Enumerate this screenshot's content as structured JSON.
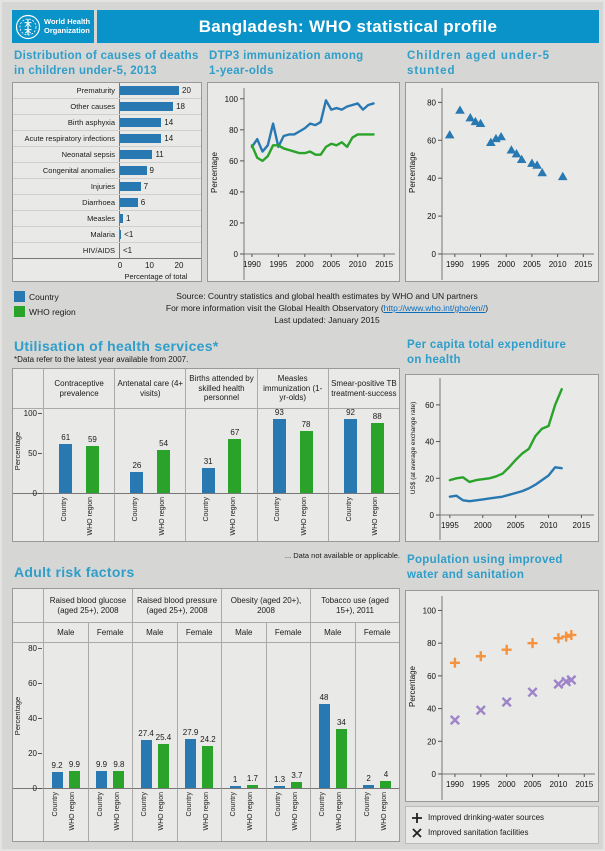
{
  "header": {
    "logo_line1": "World Health",
    "logo_line2": "Organization",
    "title": "Bangladesh: WHO statistical profile"
  },
  "legend": {
    "country": "Country",
    "who_region": "WHO region"
  },
  "source": {
    "line1": "Source:   Country statistics and global health estimates  by WHO and UN partners",
    "line2_prefix": "For more information visit the Global Health Observatory (",
    "link_text": "http://www.who.int/gho/en//",
    "line2_suffix": ")",
    "line3": "Last updated: January 2015"
  },
  "sections": {
    "causes": {
      "t1": "Distribution of causes of deaths",
      "t2": "in children under-5, 2013"
    },
    "dtp3": {
      "t1": "DTP3 immunization among",
      "t2": "1-year-olds"
    },
    "stunted": {
      "t1": "Children aged under-5",
      "t2": "stunted"
    },
    "utilisation": {
      "title": "Utilisation of health services*",
      "subtitle": "*Data refer to the latest year available from 2007.",
      "note": "... Data not available or applicable."
    },
    "expenditure": {
      "t1": "Per capita total expenditure",
      "t2": "on health"
    },
    "risk": {
      "title": "Adult risk factors"
    },
    "water": {
      "t1": "Population using improved",
      "t2": "water and sanitation",
      "legend": [
        {
          "symbol": "plus-icon",
          "label": "Improved drinking-water sources"
        },
        {
          "symbol": "cross-icon",
          "label": "Improved sanitation facilities"
        }
      ]
    }
  },
  "colors": {
    "header_blue": "#0a93c8",
    "title_cyan": "#2f9ec9",
    "country_blue": "#2878b2",
    "region_green": "#2aa32a",
    "water_orange": "#f5923e",
    "sanitation_purple": "#9d84c8",
    "link_blue": "#0a6ebd"
  },
  "chart_data": [
    {
      "id": "causes",
      "type": "bar",
      "orientation": "horizontal",
      "title": "Distribution of causes of deaths in children under-5, 2013",
      "categories": [
        "Prematurity",
        "Other causes",
        "Birth asphyxia",
        "Acute respiratory infections",
        "Neonatal sepsis",
        "Congenital anomalies",
        "Injuries",
        "Diarrhoea",
        "Measles",
        "Malaria",
        "HIV/AIDS"
      ],
      "values": [
        20,
        18,
        14,
        14,
        11,
        9,
        7,
        6,
        1,
        0.4,
        0
      ],
      "value_labels": [
        "20",
        "18",
        "14",
        "14",
        "11",
        "9",
        "7",
        "6",
        "1",
        "<1",
        "<1"
      ],
      "xlabel": "Percentage of total",
      "xticks": [
        0,
        10,
        20
      ],
      "xlim": [
        0,
        27.5
      ]
    },
    {
      "id": "dtp3",
      "type": "line",
      "title": "DTP3 immunization among 1-year-olds",
      "ylabel": "Percentage",
      "ylim": [
        0,
        105
      ],
      "yticks": [
        0,
        20,
        40,
        60,
        80,
        100
      ],
      "xlim": [
        1988.5,
        2016.3
      ],
      "xticks": [
        1990,
        1995,
        2000,
        2005,
        2010,
        2015
      ],
      "x": [
        1990,
        1991,
        1992,
        1993,
        1994,
        1995,
        1996,
        1997,
        1998,
        1999,
        2000,
        2001,
        2002,
        2003,
        2004,
        2005,
        2006,
        2007,
        2008,
        2009,
        2010,
        2011,
        2012,
        2013
      ],
      "series": [
        {
          "name": "Country",
          "color": "country_blue",
          "values": [
            69,
            74,
            66,
            70,
            84,
            69,
            76,
            77,
            77,
            79,
            81,
            84,
            83,
            85,
            99,
            93,
            94,
            93,
            95,
            96,
            97,
            93,
            96,
            97
          ]
        },
        {
          "name": "WHO region",
          "color": "region_green",
          "values": [
            70,
            62,
            60,
            63,
            70,
            70,
            68,
            67,
            66,
            65,
            65,
            66,
            64,
            64,
            69,
            71,
            70,
            72,
            69,
            75,
            77,
            77,
            77,
            77
          ]
        }
      ]
    },
    {
      "id": "stunted",
      "type": "scatter",
      "title": "Children aged under-5 stunted",
      "ylabel": "Percentage",
      "ylim": [
        0,
        86
      ],
      "yticks": [
        0,
        20,
        40,
        60,
        80
      ],
      "xlim": [
        1987.5,
        2016.3
      ],
      "xticks": [
        1990,
        1995,
        2000,
        2005,
        2010,
        2015
      ],
      "series": [
        {
          "name": "Country",
          "color": "country_blue",
          "marker": "triangle",
          "points": [
            [
              1989,
              63
            ],
            [
              1991,
              76
            ],
            [
              1993,
              72
            ],
            [
              1994,
              70
            ],
            [
              1995,
              69
            ],
            [
              1997,
              59
            ],
            [
              1998,
              61
            ],
            [
              1999,
              62
            ],
            [
              2001,
              55
            ],
            [
              2002,
              53
            ],
            [
              2003,
              50
            ],
            [
              2005,
              48
            ],
            [
              2006,
              47
            ],
            [
              2007,
              43
            ],
            [
              2011,
              41
            ]
          ]
        }
      ]
    },
    {
      "id": "utilisation",
      "type": "bar",
      "title": "Utilisation of health services",
      "categories": [
        "Contraceptive prevalence",
        "Antenatal care (4+ visits)",
        "Births attended by skilled health personnel",
        "Measles immunization (1-yr-olds)",
        "Smear-positive TB treatment-success"
      ],
      "group_labels": [
        "Country",
        "WHO region"
      ],
      "series": [
        {
          "name": "Country",
          "color": "country_blue",
          "values": [
            61,
            26,
            31,
            93,
            92
          ],
          "value_labels": [
            "61",
            "26",
            "31",
            "93",
            "92"
          ]
        },
        {
          "name": "WHO region",
          "color": "region_green",
          "values": [
            59,
            54,
            67,
            78,
            88
          ],
          "value_labels": [
            "59",
            "54",
            "67",
            "78",
            "88"
          ]
        }
      ],
      "ylabel": "Percentage",
      "yticks": [
        0,
        50,
        100
      ],
      "ylim": [
        0,
        106
      ]
    },
    {
      "id": "expenditure",
      "type": "line",
      "title": "Per capita total expenditure on health",
      "ylabel": "US$ (at average exchange rate)",
      "ylim": [
        0,
        73
      ],
      "yticks": [
        0,
        20,
        40,
        60
      ],
      "xlim": [
        1993.5,
        2016.3
      ],
      "xticks": [
        1995,
        2000,
        2005,
        2010,
        2015
      ],
      "x": [
        1995,
        1996,
        1997,
        1998,
        1999,
        2000,
        2001,
        2002,
        2003,
        2004,
        2005,
        2006,
        2007,
        2008,
        2009,
        2010,
        2011,
        2012
      ],
      "series": [
        {
          "name": "Country",
          "color": "country_blue",
          "values": [
            10,
            10.5,
            8,
            7.5,
            8,
            8.5,
            9,
            9.5,
            10,
            11,
            12,
            13,
            14.5,
            16.5,
            19,
            21.5,
            26,
            25.5
          ]
        },
        {
          "name": "WHO region",
          "color": "region_green",
          "values": [
            19,
            20,
            20.5,
            18,
            19,
            19.5,
            20,
            21,
            22.5,
            26,
            30,
            33.5,
            36,
            43,
            47,
            48.5,
            60,
            68.5
          ]
        }
      ]
    },
    {
      "id": "risk",
      "type": "bar",
      "title": "Adult risk factors",
      "categories": [
        "Raised blood glucose (aged 25+), 2008",
        "Raised blood pressure (aged 25+), 2008",
        "Obesity (aged 20+), 2008",
        "Tobacco use (aged 15+), 2011"
      ],
      "subcategories": [
        "Male",
        "Female"
      ],
      "group_labels": [
        "Country",
        "WHO region"
      ],
      "series": [
        {
          "name": "Country",
          "color": "country_blue",
          "values": [
            9.2,
            9.9,
            27.4,
            27.9,
            1,
            1.3,
            48,
            2
          ],
          "value_labels": [
            "9.2",
            "9.9",
            "27.4",
            "27.9",
            "1",
            "1.3",
            "48",
            "2"
          ]
        },
        {
          "name": "WHO region",
          "color": "region_green",
          "values": [
            9.9,
            9.8,
            25.4,
            24.2,
            1.7,
            3.7,
            34,
            4
          ],
          "value_labels": [
            "9.9",
            "9.8",
            "25.4",
            "24.2",
            "1.7",
            "3.7",
            "34",
            "4"
          ]
        }
      ],
      "ylabel": "Percentage",
      "yticks": [
        0,
        20,
        40,
        60,
        80
      ],
      "ylim": [
        0,
        82
      ]
    },
    {
      "id": "water",
      "type": "scatter",
      "title": "Population using improved water and sanitation",
      "ylabel": "Percentage",
      "ylim": [
        0,
        107
      ],
      "yticks": [
        0,
        20,
        40,
        60,
        80,
        100
      ],
      "xlim": [
        1987.5,
        2016.3
      ],
      "xticks": [
        1990,
        1995,
        2000,
        2005,
        2010,
        2015
      ],
      "series": [
        {
          "name": "Improved drinking-water sources",
          "color": "water_orange",
          "marker": "plus",
          "points": [
            [
              1990,
              68
            ],
            [
              1995,
              72
            ],
            [
              2000,
              76
            ],
            [
              2005,
              80
            ],
            [
              2010,
              83
            ],
            [
              2011.5,
              84
            ],
            [
              2012.5,
              85
            ]
          ]
        },
        {
          "name": "Improved sanitation facilities",
          "color": "sanitation_purple",
          "marker": "cross",
          "points": [
            [
              1990,
              33
            ],
            [
              1995,
              39
            ],
            [
              2000,
              44
            ],
            [
              2005,
              50
            ],
            [
              2010,
              55
            ],
            [
              2011.5,
              56.5
            ],
            [
              2012.5,
              57.5
            ]
          ]
        }
      ]
    }
  ]
}
